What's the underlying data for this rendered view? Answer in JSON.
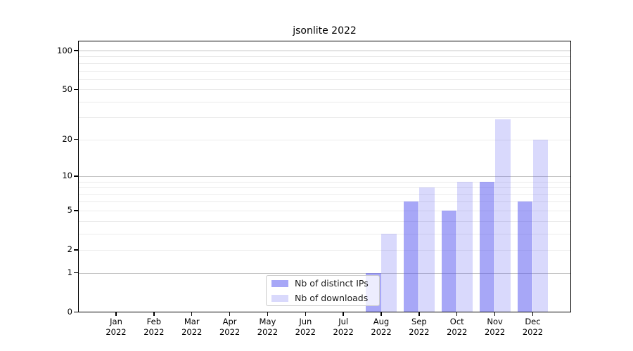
{
  "chart_data": {
    "type": "bar",
    "title": "jsonlite 2022",
    "categories": [
      "Jan 2022",
      "Feb 2022",
      "Mar 2022",
      "Apr 2022",
      "May 2022",
      "Jun 2022",
      "Jul 2022",
      "Aug 2022",
      "Sep 2022",
      "Oct 2022",
      "Nov 2022",
      "Dec 2022"
    ],
    "series": [
      {
        "name": "Nb of distinct IPs",
        "color": "rgba(80,80,240,0.5)",
        "values": [
          0,
          0,
          0,
          0,
          0,
          0,
          0,
          1,
          6,
          5,
          9,
          6
        ]
      },
      {
        "name": "Nb of downloads",
        "color": "rgba(80,80,240,0.22)",
        "values": [
          0,
          0,
          0,
          0,
          0,
          0,
          0,
          3,
          8,
          9,
          29,
          20
        ]
      }
    ],
    "y_scale": "log1p",
    "y_ticks": [
      "0",
      "1",
      "2",
      "5",
      "10",
      "20",
      "50",
      "100"
    ],
    "y_major_gridlines": [
      1,
      10,
      100
    ],
    "y_minor_gridlines": [
      2,
      3,
      4,
      5,
      6,
      7,
      8,
      9,
      20,
      30,
      40,
      50,
      60,
      70,
      80,
      90
    ],
    "grid": true,
    "legend_position": "inside lower-center",
    "colors": {
      "major_grid": "#c2c2c2",
      "minor_grid": "#ebebeb",
      "axis": "#000000",
      "background": "#ffffff"
    }
  }
}
